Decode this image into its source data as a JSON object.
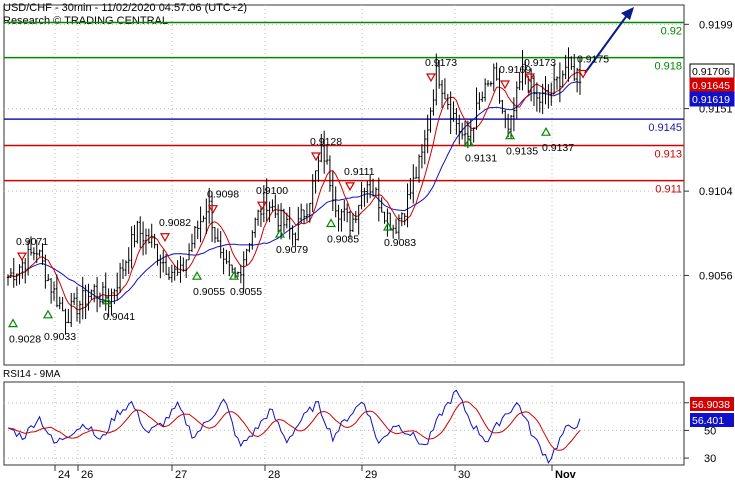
{
  "header": {
    "title": "USD/CHF - 30min - 11/02/2020 04:57:06 (UTC+2)",
    "subtitle": "Research © TRADING CENTRAL"
  },
  "chart_data": {
    "type": "candlestick",
    "price_axis": {
      "range": [
        0.9005,
        0.921
      ],
      "ticks": [
        "0.9199",
        "0.9151",
        "0.9104",
        "0.9056"
      ]
    },
    "current_price_labels": [
      {
        "text": "0.91706",
        "color": "#000000"
      },
      {
        "text": "0.91645",
        "color": "#d40000"
      },
      {
        "text": "0.91619",
        "color": "#1010c8"
      }
    ],
    "levels": [
      {
        "value": 0.92,
        "label": "0.92",
        "color": "#008a00"
      },
      {
        "value": 0.918,
        "label": "0.918",
        "color": "#008a00"
      },
      {
        "value": 0.9145,
        "label": "0.9145",
        "color": "#1a1ab0"
      },
      {
        "value": 0.913,
        "label": "0.913",
        "color": "#d40000"
      },
      {
        "value": 0.911,
        "label": "0.911",
        "color": "#d40000"
      }
    ],
    "swing_highs": [
      {
        "label": "0.9071",
        "value": 0.9071
      },
      {
        "label": "0.9082",
        "value": 0.9082
      },
      {
        "label": "0.9098",
        "value": 0.9098
      },
      {
        "label": "0.9100",
        "value": 0.91
      },
      {
        "label": "0.9128",
        "value": 0.9128
      },
      {
        "label": "0.9111",
        "value": 0.9111
      },
      {
        "label": "0.9173",
        "value": 0.9173
      },
      {
        "label": "0.9169",
        "value": 0.9169
      },
      {
        "label": "0.9173",
        "value": 0.9173
      },
      {
        "label": "0.9175",
        "value": 0.9175
      }
    ],
    "swing_lows": [
      {
        "label": "0.9028",
        "value": 0.9028
      },
      {
        "label": "0.9033",
        "value": 0.9033
      },
      {
        "label": "0.9041",
        "value": 0.9041
      },
      {
        "label": "0.9055",
        "value": 0.9055
      },
      {
        "label": "0.9055",
        "value": 0.9055
      },
      {
        "label": "0.9079",
        "value": 0.9079
      },
      {
        "label": "0.9085",
        "value": 0.9085
      },
      {
        "label": "0.9083",
        "value": 0.9083
      },
      {
        "label": "0.9131",
        "value": 0.9131
      },
      {
        "label": "0.9135",
        "value": 0.9135
      },
      {
        "label": "0.9137",
        "value": 0.9137
      }
    ],
    "price_path": [
      0.9055,
      0.9063,
      0.9071,
      0.905,
      0.9033,
      0.904,
      0.9048,
      0.9041,
      0.906,
      0.9082,
      0.9075,
      0.9062,
      0.9055,
      0.9078,
      0.9098,
      0.906,
      0.9055,
      0.908,
      0.91,
      0.9088,
      0.9079,
      0.9098,
      0.9128,
      0.9095,
      0.9085,
      0.9111,
      0.9098,
      0.9083,
      0.91,
      0.9125,
      0.9173,
      0.915,
      0.9131,
      0.9155,
      0.9169,
      0.9135,
      0.9173,
      0.9155,
      0.916,
      0.9175,
      0.917
    ],
    "rsi": {
      "title": "RSI14 - 9MA",
      "range": [
        25,
        85
      ],
      "ticks": [
        "70",
        "50",
        "30"
      ],
      "labels": [
        {
          "text": "56.9038",
          "color": "#d40000"
        },
        {
          "text": "56.401",
          "color": "#1010c8"
        }
      ],
      "path": [
        52,
        45,
        60,
        40,
        48,
        55,
        42,
        62,
        70,
        48,
        55,
        68,
        45,
        58,
        72,
        38,
        50,
        65,
        42,
        58,
        70,
        45,
        60,
        72,
        40,
        55,
        48,
        38,
        62,
        78,
        55,
        42,
        60,
        70,
        45,
        28,
        50,
        56
      ]
    },
    "x_axis": {
      "ticks": [
        "24",
        "26",
        "27",
        "28",
        "29",
        "30",
        "Nov"
      ]
    }
  }
}
